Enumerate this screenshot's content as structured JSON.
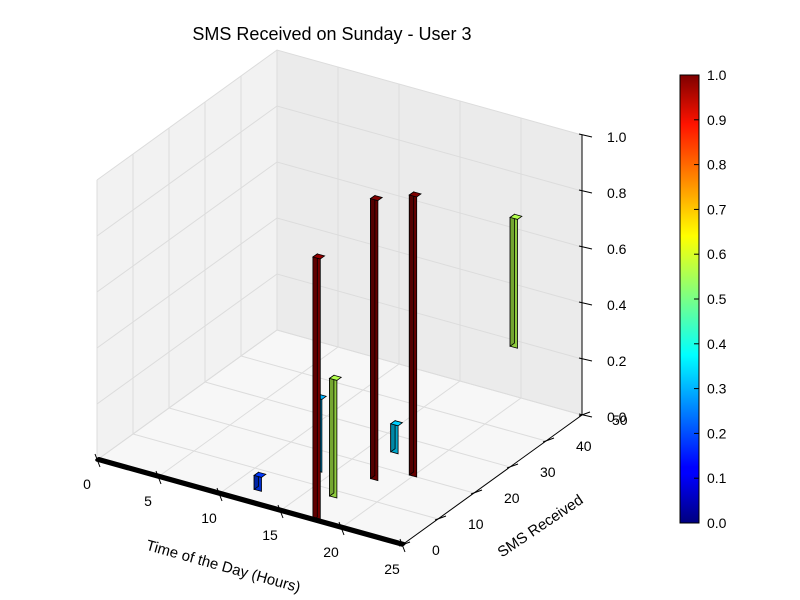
{
  "chart_data": {
    "type": "bar3d",
    "title": "SMS Received on Sunday - User 3",
    "xlabel": "Time of the Day (Hours)",
    "ylabel": "SMS Received",
    "zlabel": "",
    "xlim": [
      0,
      25
    ],
    "ylim": [
      0,
      50
    ],
    "zlim": [
      0,
      1
    ],
    "xticks": [
      "0",
      "5",
      "10",
      "15",
      "20",
      "25"
    ],
    "yticks": [
      "0",
      "10",
      "20",
      "30",
      "40",
      "50"
    ],
    "zticks": [
      "0.0",
      "0.2",
      "0.4",
      "0.6",
      "0.8",
      "1.0"
    ],
    "grid": true,
    "colormap": "jet",
    "colorbar": {
      "ticks": [
        "0.0",
        "0.1",
        "0.2",
        "0.3",
        "0.4",
        "0.5",
        "0.6",
        "0.7",
        "0.8",
        "0.9",
        "1.0"
      ],
      "range": [
        0,
        1
      ]
    },
    "baseline": {
      "x_start": 0,
      "x_end": 25,
      "y": 0,
      "color": "#00007f"
    },
    "bars": [
      {
        "hour": 12,
        "sms_received": 4,
        "bottom": 0,
        "top": 0.05,
        "color_value": 0.18
      },
      {
        "hour": 14,
        "sms_received": 14,
        "bottom": 0,
        "top": 0.26,
        "color_value": 0.3
      },
      {
        "hour": 17,
        "sms_received": 8,
        "bottom": 0,
        "top": 0.42,
        "color_value": 0.55
      },
      {
        "hour": 17,
        "sms_received": 25,
        "bottom": 0,
        "top": 0.1,
        "color_value": 0.33
      },
      {
        "hour": 18,
        "sms_received": 0,
        "bottom": 0,
        "top": 0.94,
        "color_value": 0.98
      },
      {
        "hour": 18,
        "sms_received": 16,
        "bottom": 0,
        "top": 1.0,
        "color_value": 1.0
      },
      {
        "hour": 20,
        "sms_received": 20,
        "bottom": 0,
        "top": 1.0,
        "color_value": 1.0
      },
      {
        "hour": 20,
        "sms_received": 48,
        "bottom": 0.2,
        "top": 0.66,
        "color_value": 0.55
      }
    ]
  }
}
